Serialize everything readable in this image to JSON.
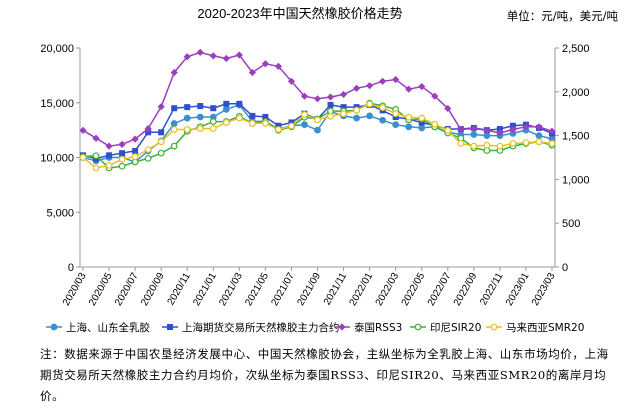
{
  "chart_data": {
    "type": "line",
    "title": "2020-2023年中国天然橡胶价格走势",
    "unit_label": "单位：元/吨，美元/吨",
    "x": [
      "2020/03",
      "2020/04",
      "2020/05",
      "2020/06",
      "2020/07",
      "2020/08",
      "2020/09",
      "2020/10",
      "2020/11",
      "2020/12",
      "2021/01",
      "2021/02",
      "2021/03",
      "2021/04",
      "2021/05",
      "2021/06",
      "2021/07",
      "2021/08",
      "2021/09",
      "2021/10",
      "2021/11",
      "2021/12",
      "2022/01",
      "2022/02",
      "2022/03",
      "2022/04",
      "2022/05",
      "2022/06",
      "2022/07",
      "2022/08",
      "2022/09",
      "2022/10",
      "2022/11",
      "2022/12",
      "2023/01",
      "2023/02",
      "2023/03"
    ],
    "x_tick_labels": [
      "2020/03",
      "2020/05",
      "2020/07",
      "2020/09",
      "2020/11",
      "2021/01",
      "2021/03",
      "2021/05",
      "2021/07",
      "2021/09",
      "2021/11",
      "2022/01",
      "2022/03",
      "2022/05",
      "2022/07",
      "2022/09",
      "2022/11",
      "2023/01",
      "2023/03"
    ],
    "y_left": {
      "ylim": [
        0,
        20000
      ],
      "ticks": [
        "0",
        "5,000",
        "10,000",
        "15,000",
        "20,000"
      ]
    },
    "y_right": {
      "ylim": [
        0,
        2500
      ],
      "ticks": [
        "0",
        "500",
        "1,000",
        "1,500",
        "2,000",
        "2,500"
      ]
    },
    "grid": false,
    "legend_position": "bottom",
    "series": [
      {
        "name": "上海、山东全乳胶",
        "axis": "left",
        "color": "#3b8fd0",
        "marker": "circle",
        "values": [
          10000,
          9700,
          10000,
          10000,
          9600,
          10600,
          11500,
          13100,
          13600,
          13700,
          13700,
          14400,
          14800,
          13300,
          13300,
          12600,
          12900,
          13000,
          12500,
          14200,
          13800,
          13600,
          13800,
          13400,
          13000,
          12800,
          12700,
          12800,
          12300,
          12100,
          12100,
          12000,
          12000,
          12200,
          12500,
          12000,
          11700
        ]
      },
      {
        "name": "上海期货交易所天然橡胶主力合约",
        "axis": "left",
        "color": "#2f4fcf",
        "marker": "square",
        "values": [
          10200,
          9900,
          10200,
          10400,
          10600,
          12300,
          12300,
          14500,
          14600,
          14700,
          14500,
          14900,
          14900,
          13800,
          13700,
          12900,
          13200,
          14000,
          13500,
          14800,
          14600,
          14600,
          14800,
          14300,
          13700,
          13500,
          13200,
          12900,
          12600,
          12600,
          12700,
          12500,
          12600,
          12900,
          13000,
          12700,
          12200
        ]
      },
      {
        "name": "泰国RSS3",
        "axis": "right",
        "color": "#9b3fbf",
        "marker": "diamond",
        "values": [
          1560,
          1470,
          1380,
          1400,
          1460,
          1580,
          1830,
          2220,
          2400,
          2450,
          2410,
          2380,
          2420,
          2220,
          2320,
          2290,
          2120,
          1950,
          1920,
          1940,
          1970,
          2040,
          2070,
          2120,
          2140,
          2030,
          2060,
          1950,
          1810,
          1570,
          1580,
          1560,
          1530,
          1570,
          1600,
          1600,
          1550
        ]
      },
      {
        "name": "印尼SIR20",
        "axis": "right",
        "color": "#3caf3c",
        "marker": "circle",
        "values": [
          1260,
          1270,
          1130,
          1150,
          1200,
          1240,
          1300,
          1380,
          1550,
          1600,
          1660,
          1660,
          1720,
          1640,
          1660,
          1560,
          1600,
          1710,
          1690,
          1780,
          1780,
          1790,
          1870,
          1840,
          1800,
          1680,
          1690,
          1600,
          1530,
          1470,
          1360,
          1330,
          1330,
          1380,
          1410,
          1430,
          1390
        ]
      },
      {
        "name": "马来西亚SMR20",
        "axis": "right",
        "color": "#e8c020",
        "marker": "circle",
        "values": [
          1250,
          1130,
          1160,
          1230,
          1260,
          1340,
          1430,
          1570,
          1570,
          1580,
          1580,
          1650,
          1700,
          1640,
          1640,
          1570,
          1610,
          1740,
          1680,
          1720,
          1750,
          1790,
          1860,
          1820,
          1750,
          1710,
          1700,
          1630,
          1560,
          1410,
          1380,
          1390,
          1380,
          1410,
          1420,
          1430,
          1410
        ]
      }
    ]
  },
  "note": {
    "text": "注：数据来源于中国农垦经济发展中心、中国天然橡胶协会，主纵坐标为全乳胶上海、山东市场均价，上海期货交易所天然橡胶主力合约月均价，次纵坐标为泰国RSS3、印尼SIR20、马来西亚SMR20的离岸月均价。"
  }
}
